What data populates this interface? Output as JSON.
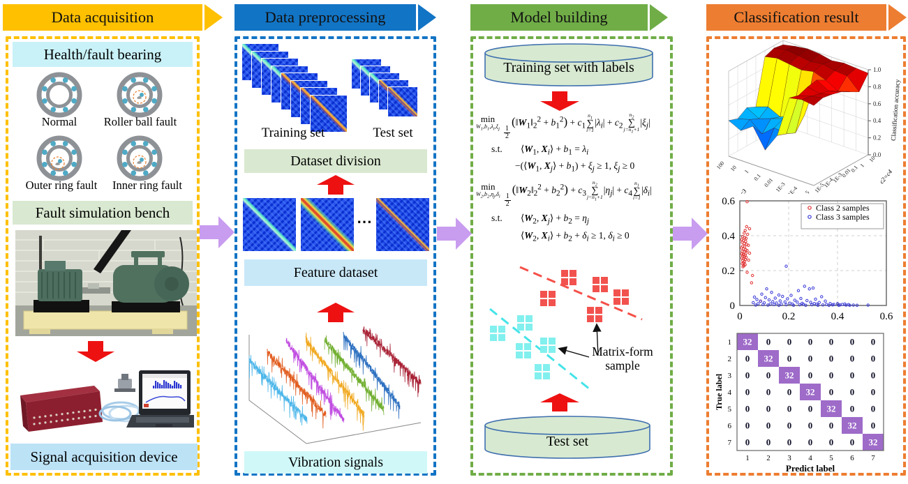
{
  "banners": [
    {
      "label": "Data acquisition",
      "color": "#FFC000"
    },
    {
      "label": "Data preprocessing",
      "color": "#1274C5"
    },
    {
      "label": "Model building",
      "color": "#70AD47"
    },
    {
      "label": "Classification result",
      "color": "#ED7D31"
    }
  ],
  "arrows": {
    "flow_color": "#C89CEF",
    "step_color": "#EE1111"
  },
  "palette": {
    "header_cyan": "#C9F2F8",
    "header_green": "#D9E8D0",
    "header_blue": "#BCE2F6",
    "feature_blue": "#C8E8F8",
    "vib_cyan": "#D0F8F8",
    "cylinder_fill": "#D7E9D1",
    "cylinder_stroke": "#3E6FAE"
  },
  "acquisition": {
    "bearing_header": "Health/fault bearing",
    "bearings": [
      {
        "label": "Normal",
        "fault": "none"
      },
      {
        "label": "Roller ball fault",
        "fault": "ball"
      },
      {
        "label": "Outer ring fault",
        "fault": "outer"
      },
      {
        "label": "Inner ring fault",
        "fault": "inner"
      }
    ],
    "bench_header": "Fault simulation bench",
    "device_header": "Signal acquisition device"
  },
  "preprocessing": {
    "training_label": "Training set",
    "test_label": "Test set",
    "dataset_division": "Dataset division",
    "feature_dataset": "Feature dataset",
    "vibration_signals": "Vibration signals",
    "dots": "⋯",
    "signal_colors": [
      "#49B4E9",
      "#E05A1B",
      "#C04AE0",
      "#F0A81E",
      "#6FAE2D",
      "#2B6FC0",
      "#A81F33"
    ]
  },
  "model": {
    "training_cylinder": "Training set with labels",
    "test_cylinder": "Test set",
    "annotation": "Matrix-form sample",
    "formula1": {
      "min": "min",
      "min_sub": "<i>W</i><sub>1</sub>,<i>b</i><sub>1</sub>,<i>λ<sub>i</sub></i>,<i>ξ<sub>j</sub></i>",
      "objective": "<span class='frac'><span>1</span><span>2</span></span><span class='big'>(</span>‖<b><i>W</i></b><sub>1</sub>‖<sub>2</sub><sup>2</sup> + <i>b</i><sub>1</sub><sup>2</sup><span class='big'>)</span> + <i>c</i><sub>1</sub><span class='sum'><span class='lim'><i>n</i><sub>1</sub></span><span class='sig'>∑</span><span class='lim'><i>i</i>=1</span></span>|<i>λ<sub>i</sub></i>| + <i>c</i><sub>2</sub><span class='sum'><span class='lim'><i>n</i><sub>2</sub></span><span class='sig'>∑</span><span class='lim'><i>j</i>=<i>n</i><sub>1</sub>+1</span></span>|<i>ξ<sub>j</sub></i>|",
      "st": "s.t.",
      "con1": "⟨<b><i>W</i></b><sub>1</sub>, <b><i>X</i></b><sub><i>i</i></sub>⟩ + <i>b</i><sub>1</sub> = <i>λ<sub>i</sub></i>",
      "con2": "−(⟨<b><i>W</i></b><sub>1</sub>, <b><i>X</i></b><sub><i>j</i></sub>⟩ + <i>b</i><sub>1</sub>) + <i>ξ<sub>j</sub></i> ≥ 1, <i>ξ<sub>j</sub></i> ≥ 0"
    },
    "formula2": {
      "min": "min",
      "min_sub": "<i>W</i><sub>2</sub>,<i>b</i><sub>2</sub>,<i>η<sub>j</sub></i>,<i>δ<sub>i</sub></i>",
      "objective": "<span class='frac'><span>1</span><span>2</span></span><span class='big'>(</span>‖<b><i>W</i></b><sub>2</sub>‖<sub>2</sub><sup>2</sup> + <i>b</i><sub>2</sub><sup>2</sup><span class='big'>)</span> + <i>c</i><sub>3</sub><span class='sum'><span class='lim'><i>n</i><sub>2</sub></span><span class='sig'>∑</span><span class='lim'><i>j</i>=<i>n</i><sub>1</sub>+1</span></span>|<i>η<sub>j</sub></i>| + <i>c</i><sub>4</sub><span class='sum'><span class='lim'><i>n</i><sub>1</sub></span><span class='sig'>∑</span><span class='lim'><i>i</i>=1</span></span>|<i>δ<sub>i</sub></i>|",
      "st": "s.t.",
      "con1": "⟨<b><i>W</i></b><sub>2</sub>, <b><i>X</i></b><sub><i>j</i></sub>⟩ + <i>b</i><sub>2</sub> = <i>η<sub>j</sub></i>",
      "con2": "⟨<b><i>W</i></b><sub>2</sub>, <b><i>X</i></b><sub><i>i</i></sub>⟩ + <i>b</i><sub>2</sub> + <i>δ<sub>i</sub></i> ≥ 1, <i>δ<sub>i</sub></i> ≥ 0"
    },
    "samples": {
      "red_color": "#F2524E",
      "cyan_color": "#82F0EE",
      "red": [
        [
          128,
          11
        ],
        [
          173,
          21
        ],
        [
          98,
          41
        ],
        [
          203,
          39
        ],
        [
          165,
          64
        ]
      ],
      "cyan": [
        [
          65,
          76
        ],
        [
          26,
          91
        ],
        [
          63,
          116
        ],
        [
          98,
          108
        ],
        [
          90,
          146
        ]
      ]
    }
  },
  "chart_data": [
    {
      "type": "surface",
      "zlabel": "Classification accuracy",
      "xlabel": "c1=c3",
      "ylabel": "c2=c4",
      "x_ticks": [
        "100",
        "10",
        "1",
        "0.1",
        "0.01",
        "1E-3",
        "1E-4",
        "1E-5"
      ],
      "y_ticks": [
        "1E-5",
        "1E-4",
        "1E-3",
        "0.01",
        "0.1",
        "1",
        "10"
      ],
      "z_ticks": [
        "0.0",
        "0.2",
        "0.4",
        "0.6",
        "0.8",
        "1.0"
      ],
      "zlim": [
        0,
        1
      ],
      "values": [
        [
          0.42,
          0.38,
          0.45,
          0.4,
          0.93,
          0.97,
          0.95
        ],
        [
          0.35,
          0.42,
          0.37,
          0.45,
          0.96,
          1.0,
          0.98
        ],
        [
          0.45,
          0.3,
          0.42,
          0.38,
          0.94,
          0.98,
          1.0
        ],
        [
          0.22,
          0.42,
          0.47,
          0.44,
          0.92,
          0.96,
          0.99
        ],
        [
          0.44,
          0.4,
          0.35,
          0.5,
          0.95,
          0.98,
          0.96
        ],
        [
          0.93,
          0.9,
          0.94,
          0.96,
          0.9,
          0.95,
          0.98
        ],
        [
          0.96,
          0.94,
          0.91,
          0.88,
          0.82,
          0.94,
          0.97
        ],
        [
          0.94,
          0.97,
          0.95,
          0.92,
          0.86,
          0.8,
          0.96
        ]
      ]
    },
    {
      "type": "scatter",
      "xlim": [
        0,
        0.6
      ],
      "ylim": [
        0,
        0.6
      ],
      "x_ticks": [
        "0",
        "0.2",
        "0.4",
        "0.6"
      ],
      "y_ticks": [
        "0",
        "0.2",
        "0.4",
        "0.6"
      ],
      "grid": "dashed",
      "legend_position": "top-right",
      "series": [
        {
          "name": "Class 2 samples",
          "color": "#E03030",
          "points": [
            [
              0.03,
              0.595
            ],
            [
              0.028,
              0.452
            ],
            [
              0.04,
              0.44
            ],
            [
              0.022,
              0.43
            ],
            [
              0.018,
              0.415
            ],
            [
              0.032,
              0.408
            ],
            [
              0.012,
              0.395
            ],
            [
              0.02,
              0.39
            ],
            [
              0.026,
              0.385
            ],
            [
              0.008,
              0.378
            ],
            [
              0.015,
              0.372
            ],
            [
              0.024,
              0.368
            ],
            [
              0.01,
              0.362
            ],
            [
              0.018,
              0.356
            ],
            [
              0.028,
              0.35
            ],
            [
              0.035,
              0.345
            ],
            [
              0.012,
              0.34
            ],
            [
              0.02,
              0.336
            ],
            [
              0.007,
              0.33
            ],
            [
              0.016,
              0.325
            ],
            [
              0.024,
              0.32
            ],
            [
              0.03,
              0.315
            ],
            [
              0.01,
              0.31
            ],
            [
              0.018,
              0.306
            ],
            [
              0.025,
              0.3
            ],
            [
              0.008,
              0.296
            ],
            [
              0.014,
              0.292
            ],
            [
              0.022,
              0.288
            ],
            [
              0.011,
              0.284
            ],
            [
              0.019,
              0.28
            ],
            [
              0.026,
              0.276
            ],
            [
              0.009,
              0.272
            ],
            [
              0.016,
              0.268
            ],
            [
              0.023,
              0.264
            ],
            [
              0.012,
              0.258
            ],
            [
              0.02,
              0.252
            ],
            [
              0.015,
              0.246
            ],
            [
              0.01,
              0.24
            ],
            [
              0.022,
              0.234
            ],
            [
              0.017,
              0.228
            ],
            [
              0.013,
              0.222
            ],
            [
              0.04,
              0.3
            ],
            [
              0.036,
              0.26
            ],
            [
              0.03,
              0.19
            ],
            [
              0.052,
              0.172
            ],
            [
              0.048,
              0.13
            ],
            [
              0.085,
              0.025
            ]
          ]
        },
        {
          "name": "Class 3 samples",
          "color": "#3838D8",
          "points": [
            [
              0.19,
              0.225
            ],
            [
              0.11,
              0.095
            ],
            [
              0.265,
              0.11
            ],
            [
              0.3,
              0.1
            ],
            [
              0.285,
              0.095
            ],
            [
              0.24,
              0.085
            ],
            [
              0.13,
              0.075
            ],
            [
              0.09,
              0.065
            ],
            [
              0.16,
              0.06
            ],
            [
              0.21,
              0.058
            ],
            [
              0.175,
              0.052
            ],
            [
              0.335,
              0.05
            ],
            [
              0.06,
              0.048
            ],
            [
              0.105,
              0.045
            ],
            [
              0.145,
              0.042
            ],
            [
              0.25,
              0.04
            ],
            [
              0.195,
              0.038
            ],
            [
              0.31,
              0.036
            ],
            [
              0.07,
              0.034
            ],
            [
              0.12,
              0.032
            ],
            [
              0.225,
              0.03
            ],
            [
              0.275,
              0.028
            ],
            [
              0.165,
              0.026
            ],
            [
              0.35,
              0.025
            ],
            [
              0.085,
              0.024
            ],
            [
              0.135,
              0.022
            ],
            [
              0.185,
              0.02
            ],
            [
              0.235,
              0.019
            ],
            [
              0.29,
              0.018
            ],
            [
              0.325,
              0.017
            ],
            [
              0.055,
              0.016
            ],
            [
              0.1,
              0.015
            ],
            [
              0.15,
              0.014
            ],
            [
              0.205,
              0.013
            ],
            [
              0.255,
              0.012
            ],
            [
              0.305,
              0.011
            ],
            [
              0.37,
              0.011
            ],
            [
              0.4,
              0.01
            ],
            [
              0.075,
              0.01
            ],
            [
              0.125,
              0.009
            ],
            [
              0.17,
              0.008
            ],
            [
              0.215,
              0.008
            ],
            [
              0.26,
              0.007
            ],
            [
              0.315,
              0.007
            ],
            [
              0.355,
              0.006
            ],
            [
              0.385,
              0.006
            ],
            [
              0.42,
              0.006
            ],
            [
              0.445,
              0.005
            ],
            [
              0.095,
              0.005
            ],
            [
              0.14,
              0.005
            ],
            [
              0.19,
              0.004
            ],
            [
              0.245,
              0.004
            ],
            [
              0.295,
              0.004
            ],
            [
              0.34,
              0.003
            ],
            [
              0.38,
              0.003
            ],
            [
              0.41,
              0.003
            ],
            [
              0.435,
              0.002
            ],
            [
              0.465,
              0.002
            ],
            [
              0.525,
              0.002
            ],
            [
              0.065,
              0.002
            ],
            [
              0.115,
              0.002
            ],
            [
              0.16,
              0.001
            ],
            [
              0.22,
              0.001
            ],
            [
              0.27,
              0.001
            ],
            [
              0.32,
              0.001
            ],
            [
              0.365,
              0.001
            ],
            [
              0.405,
              0.001
            ],
            [
              0.45,
              0.001
            ],
            [
              0.48,
              0.001
            ],
            [
              0.43,
              0.008
            ]
          ]
        }
      ]
    },
    {
      "type": "heatmap",
      "name": "confusion-matrix",
      "xlabel": "Predict label",
      "ylabel": "True label",
      "x_labels": [
        "1",
        "2",
        "3",
        "4",
        "5",
        "6",
        "7"
      ],
      "y_labels": [
        "1",
        "2",
        "3",
        "4",
        "5",
        "6",
        "7"
      ],
      "diag_color": "#9E6BC9",
      "values": [
        [
          32,
          0,
          0,
          0,
          0,
          0,
          0
        ],
        [
          0,
          32,
          0,
          0,
          0,
          0,
          0
        ],
        [
          0,
          0,
          32,
          0,
          0,
          0,
          0
        ],
        [
          0,
          0,
          0,
          32,
          0,
          0,
          0
        ],
        [
          0,
          0,
          0,
          0,
          32,
          0,
          0
        ],
        [
          0,
          0,
          0,
          0,
          0,
          32,
          0
        ],
        [
          0,
          0,
          0,
          0,
          0,
          0,
          32
        ]
      ]
    }
  ]
}
